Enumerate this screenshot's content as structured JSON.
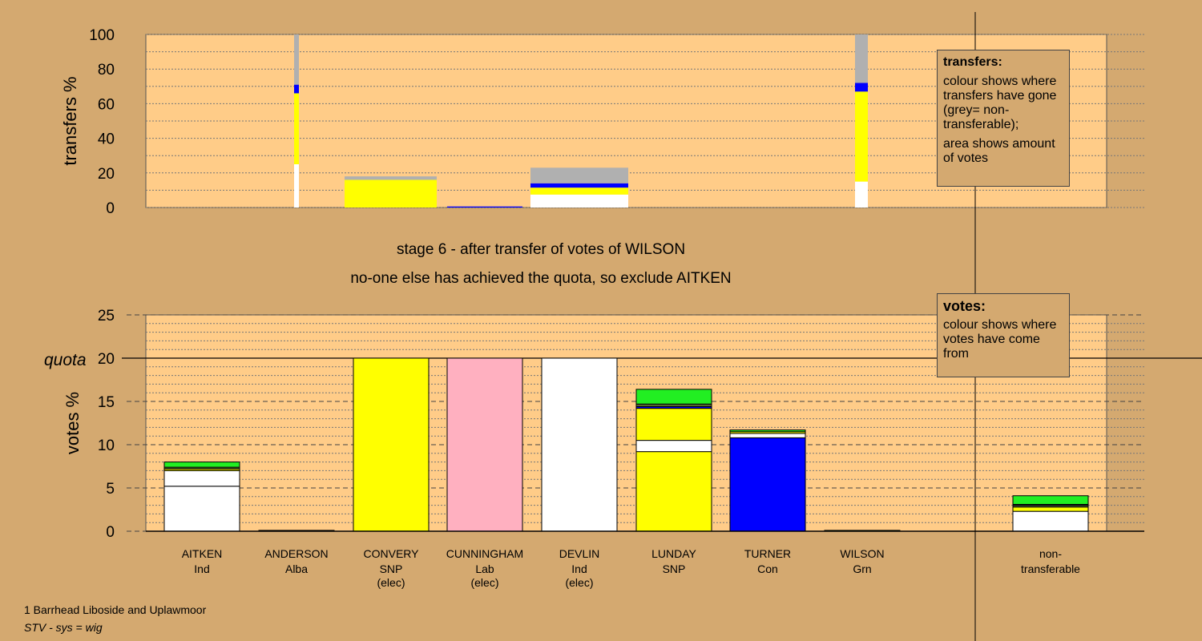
{
  "colors": {
    "background": "#d4a970",
    "plot": "#ffcc88",
    "Ind": "#ffffff",
    "SNP": "#ffff00",
    "Con": "#0000ff",
    "Grn": "#22ee22",
    "Lab": "#ffb0c0",
    "Alba": "#556b2f",
    "nontransferable": "#b0b0b0"
  },
  "titles": {
    "stage": "stage 6 - after transfer of votes of WILSON",
    "note": "no-one else has achieved the quota, so exclude AITKEN"
  },
  "legend_transfers": {
    "heading": "transfers:",
    "line1": "colour shows where transfers have gone (grey= non-transferable);",
    "line2": "area shows amount of votes"
  },
  "legend_votes": {
    "heading": "votes:",
    "line1": "colour shows where votes have come from"
  },
  "footer": {
    "line1": "1 Barrhead Liboside and Uplawmoor",
    "line2": "STV - sys = wig"
  },
  "chart_data": [
    {
      "type": "bar",
      "stacked": true,
      "ylabel": "transfers %",
      "ylim": [
        0,
        100
      ],
      "yticks": [
        0,
        20,
        40,
        60,
        80,
        100
      ],
      "grid": "dotted horizontal",
      "legend_placement": "right",
      "segments": [
        {
          "column": "AITKEN",
          "width": "narrow",
          "stack": [
            {
              "party": "Ind",
              "value": 25
            },
            {
              "party": "SNP",
              "value": 41
            },
            {
              "party": "Con",
              "value": 5
            },
            {
              "party": "nontransferable",
              "value": 29
            }
          ]
        },
        {
          "column": "CONVERY",
          "width": "full",
          "stack": [
            {
              "party": "SNP",
              "value": 16
            },
            {
              "party": "nontransferable",
              "value": 2
            }
          ]
        },
        {
          "column": "CUNNINGHAM",
          "width": "full",
          "stack": [
            {
              "party": "Con",
              "value": 0.6
            }
          ]
        },
        {
          "column": "DEVLIN",
          "width": "full",
          "stack": [
            {
              "party": "Ind",
              "value": 7.5
            },
            {
              "party": "SNP",
              "value": 4
            },
            {
              "party": "Con",
              "value": 2.5
            },
            {
              "party": "nontransferable",
              "value": 9
            }
          ]
        },
        {
          "column": "non-transferable",
          "width": "narrow",
          "stack": [
            {
              "party": "Ind",
              "value": 15
            },
            {
              "party": "SNP",
              "value": 52
            },
            {
              "party": "Con",
              "value": 5
            },
            {
              "party": "nontransferable",
              "value": 28
            }
          ]
        }
      ]
    },
    {
      "type": "bar",
      "stacked": true,
      "ylabel": "votes %",
      "ylim": [
        0,
        25
      ],
      "yticks": [
        0,
        5,
        10,
        15,
        20,
        25
      ],
      "quota": 20,
      "quota_label": "quota",
      "grid": "dashed at ticks, dotted minor",
      "legend_placement": "right",
      "candidates": [
        {
          "name": "AITKEN",
          "party": "Ind",
          "elected": "",
          "stack": [
            {
              "party": "Ind",
              "value": 5.2
            },
            {
              "party": "Ind",
              "value": 1.8
            },
            {
              "party": "SNP",
              "value": 0.2
            },
            {
              "party": "Alba",
              "value": 0.2
            },
            {
              "party": "Grn",
              "value": 0.6
            }
          ]
        },
        {
          "name": "ANDERSON",
          "party": "Alba",
          "elected": "",
          "stack": [
            {
              "party": "Alba",
              "value": 0.1
            }
          ]
        },
        {
          "name": "CONVERY",
          "party": "SNP",
          "elected": "(elec)",
          "stack": [
            {
              "party": "SNP",
              "value": 20
            }
          ]
        },
        {
          "name": "CUNNINGHAM",
          "party": "Lab",
          "elected": "(elec)",
          "stack": [
            {
              "party": "Lab",
              "value": 20
            }
          ]
        },
        {
          "name": "DEVLIN",
          "party": "Ind",
          "elected": "(elec)",
          "stack": [
            {
              "party": "Ind",
              "value": 20
            }
          ]
        },
        {
          "name": "LUNDAY",
          "party": "SNP",
          "elected": "",
          "stack": [
            {
              "party": "SNP",
              "value": 9.2
            },
            {
              "party": "Ind",
              "value": 1.3
            },
            {
              "party": "SNP",
              "value": 3.7
            },
            {
              "party": "Con",
              "value": 0.2
            },
            {
              "party": "Alba",
              "value": 0.3
            },
            {
              "party": "Grn",
              "value": 1.7
            }
          ]
        },
        {
          "name": "TURNER",
          "party": "Con",
          "elected": "",
          "stack": [
            {
              "party": "Con",
              "value": 10.8
            },
            {
              "party": "Ind",
              "value": 0.5
            },
            {
              "party": "SNP",
              "value": 0.2
            },
            {
              "party": "Grn",
              "value": 0.2
            }
          ]
        },
        {
          "name": "WILSON",
          "party": "Grn",
          "elected": "",
          "stack": [
            {
              "party": "Grn",
              "value": 0.1
            }
          ]
        },
        {
          "name": "non-",
          "party": "transferable",
          "elected": "",
          "stack": [
            {
              "party": "Ind",
              "value": 2.3
            },
            {
              "party": "SNP",
              "value": 0.5
            },
            {
              "party": "Alba",
              "value": 0.2
            },
            {
              "party": "Con",
              "value": 0.1
            },
            {
              "party": "Grn",
              "value": 1
            }
          ]
        }
      ]
    }
  ]
}
